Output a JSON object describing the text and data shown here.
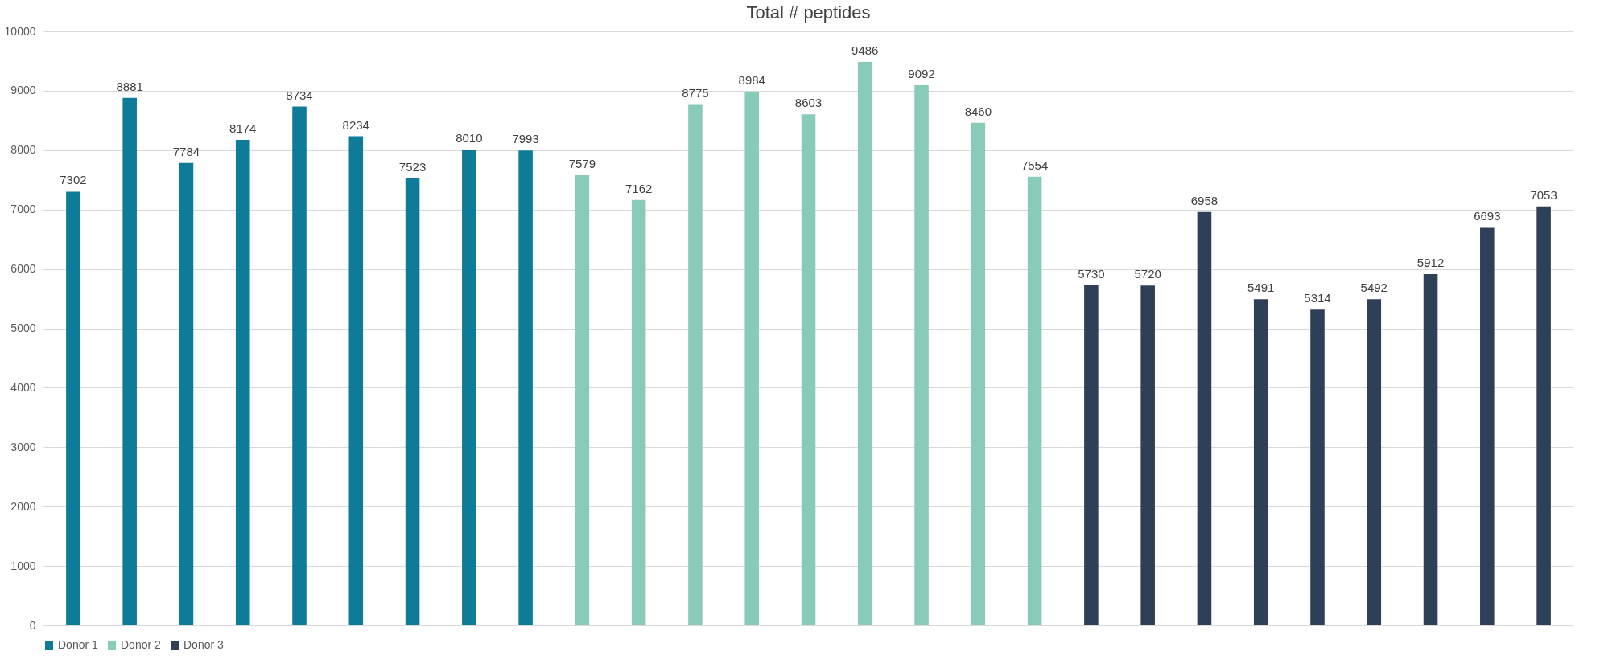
{
  "chart_data": {
    "type": "bar",
    "title": "Total # peptides",
    "categories": [
      null,
      null,
      null,
      null,
      null,
      null,
      null,
      null,
      null,
      null,
      null,
      null,
      null,
      null,
      null,
      null,
      null,
      null,
      null,
      null,
      null,
      null,
      null,
      null,
      null,
      null,
      null
    ],
    "series": [
      {
        "name": "Donor 1",
        "color": "#0e7c98",
        "values": [
          7302,
          8881,
          7784,
          8174,
          8734,
          8234,
          7523,
          8010,
          7993,
          null,
          null,
          null,
          null,
          null,
          null,
          null,
          null,
          null,
          null,
          null,
          null,
          null,
          null,
          null,
          null,
          null,
          null
        ]
      },
      {
        "name": "Donor 2",
        "color": "#88cbb9",
        "values": [
          null,
          null,
          null,
          null,
          null,
          null,
          null,
          null,
          null,
          7579,
          7162,
          8775,
          8984,
          8603,
          9486,
          9092,
          8460,
          7554,
          null,
          null,
          null,
          null,
          null,
          null,
          null,
          null,
          null
        ]
      },
      {
        "name": "Donor 3",
        "color": "#2e4057",
        "values": [
          null,
          null,
          null,
          null,
          null,
          null,
          null,
          null,
          null,
          null,
          null,
          null,
          null,
          null,
          null,
          null,
          null,
          null,
          5730,
          5720,
          6958,
          5491,
          5314,
          5492,
          5912,
          6693,
          7053
        ]
      }
    ],
    "ylim": [
      0,
      10000
    ],
    "yticks": [
      0,
      1000,
      2000,
      3000,
      4000,
      5000,
      6000,
      7000,
      8000,
      9000,
      10000
    ],
    "grid": "y",
    "legend": "bottom",
    "data_labels": true
  }
}
